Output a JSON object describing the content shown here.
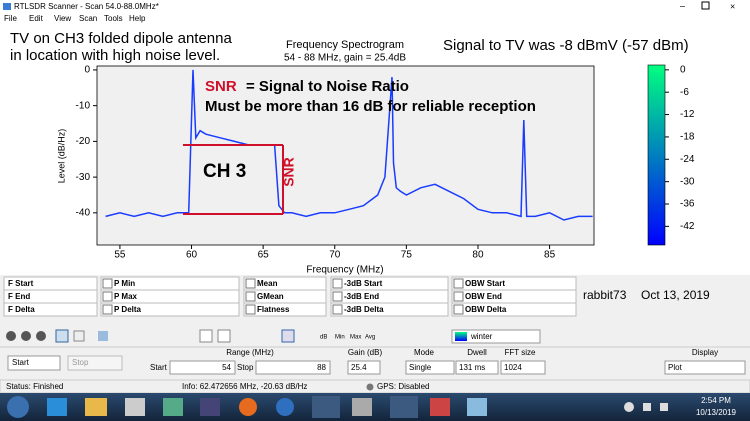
{
  "window": {
    "title": "RTLSDR Scanner - Scan 54.0-88.0MHz*",
    "menu": [
      "File",
      "Edit",
      "View",
      "Scan",
      "Tools",
      "Help"
    ]
  },
  "chart_data": {
    "type": "line",
    "title": "Frequency Spectrogram",
    "subtitle": "54 - 88 MHz, gain = 25.4dB",
    "x_label": "Frequency (MHz)",
    "y_label": "Level (dB/Hz)",
    "x": [
      54,
      55,
      56,
      57,
      58,
      59,
      59.8,
      60.1,
      60.3,
      60.6,
      61,
      62,
      63,
      64,
      65,
      65.5,
      65.8,
      66.1,
      66.5,
      67,
      68,
      69,
      70,
      71,
      72,
      73,
      73.5,
      74,
      74.1,
      74.3,
      74.6,
      75,
      76,
      77,
      78,
      79,
      80,
      81,
      82,
      83,
      83.2,
      83.4,
      84,
      85,
      86,
      87,
      88
    ],
    "series": [
      {
        "color": "#1a3cff",
        "values": [
          -41,
          -40,
          -41,
          -40,
          -41,
          -40,
          -40,
          0,
          -19,
          -17,
          -18,
          -19,
          -20,
          -21,
          -21,
          -21,
          -21,
          -38,
          -40,
          -40,
          -41,
          -40,
          -40,
          -39,
          -38,
          -35,
          -30,
          -2,
          -26,
          -33,
          -34,
          -35,
          -33,
          -32,
          -34,
          -36,
          -39,
          -40,
          -40,
          -41,
          -14,
          -41,
          -41,
          -40,
          -42,
          -41,
          -41
        ]
      }
    ],
    "xlim": [
      53.4,
      88.1
    ],
    "xticks": [
      55,
      60,
      65,
      70,
      75,
      80,
      85
    ],
    "ylim": [
      -49,
      1.1
    ],
    "yticks": [
      0,
      -10,
      -20,
      -30,
      -40
    ],
    "colorbar": {
      "colormap": "winter",
      "lim": [
        -47,
        1.3
      ],
      "ticks": [
        0,
        -6,
        -12,
        -18,
        -24,
        -30,
        -36,
        -42
      ]
    }
  },
  "annotations": {
    "note_left": [
      "TV on CH3 folded dipole antenna",
      "in location with high noise level."
    ],
    "note_right": "Signal to TV was -8 dBmV (-57 dBm)",
    "snr": "SNR",
    "snr_definition": "= Signal to Noise Ratio",
    "requirement": "Must be more than 16 dB for reliable reception",
    "channel": "CH 3",
    "snr_vertical": "SNR"
  },
  "measurements": {
    "columns": [
      [
        "F Start",
        "F End",
        "F Delta"
      ],
      [
        "P Min",
        "P Max",
        "P Delta"
      ],
      [
        "Mean",
        "GMean",
        "Flatness"
      ],
      [
        "-3dB Start",
        "-3dB End",
        "-3dB Delta"
      ],
      [
        "OBW Start",
        "OBW End",
        "OBW Delta"
      ]
    ]
  },
  "signature": {
    "author": "rabbit73",
    "date": "Oct 13, 2019"
  },
  "toolbar": {
    "labels": [
      "dB",
      "Min",
      "Max",
      "Avg"
    ],
    "colormap": "winter"
  },
  "controls": {
    "start_button": "Start",
    "stop_button": "Stop",
    "range_label": "Range (MHz)",
    "start_label": "Start",
    "start_value": "54",
    "stop_label": "Stop",
    "stop_value": "88",
    "gain_label": "Gain (dB)",
    "gain_value": "25.4",
    "mode_label": "Mode",
    "mode_value": "Single",
    "dwell_label": "Dwell",
    "dwell_value": "131 ms",
    "fft_label": "FFT size",
    "fft_value": "1024",
    "display_label": "Display",
    "display_value": "Plot"
  },
  "status": {
    "state": "Status: Finished",
    "info": "Info: 62.472656 MHz, -20.63 dB/Hz",
    "gps": "GPS: Disabled"
  },
  "taskbar": {
    "time": "2:54 PM",
    "date": "10/13/2019"
  }
}
